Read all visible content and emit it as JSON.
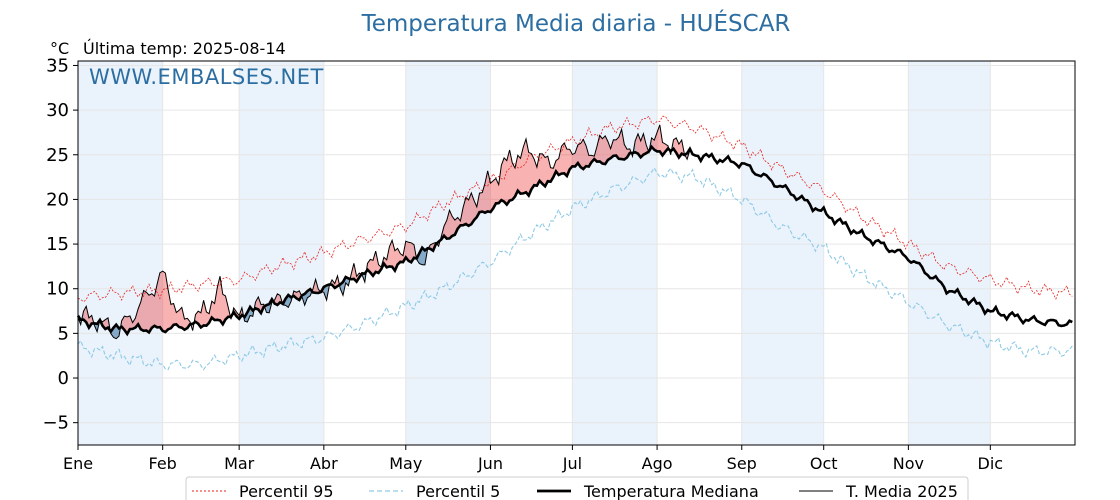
{
  "chart_data": {
    "type": "line",
    "title": "Temperatura Media diaria - HUÉSCAR",
    "unit_label": "°C",
    "last_temp_label": "Última temp: 2025-08-14",
    "watermark": "WWW.EMBALSES.NET",
    "xlabel": "",
    "ylabel": "",
    "ylim": [
      -7.5,
      35.5
    ],
    "yticks": [
      -5,
      0,
      5,
      10,
      15,
      20,
      25,
      30,
      35
    ],
    "months": [
      "Ene",
      "Feb",
      "Mar",
      "Abr",
      "May",
      "Jun",
      "Jul",
      "Ago",
      "Sep",
      "Oct",
      "Nov",
      "Dic"
    ],
    "grid": true,
    "legend_position": "bottom-center",
    "colors": {
      "p95": "#e8231f",
      "p5": "#8ecae6",
      "median": "#000000",
      "year": "#000000",
      "above": "#e8231f",
      "below": "#2f6da1",
      "shade": "#eaf2fb"
    },
    "series": [
      {
        "name": "Percentil 95",
        "key": "p95",
        "x": [
          "01-01",
          "01-15",
          "02-01",
          "02-15",
          "03-01",
          "03-15",
          "04-01",
          "04-15",
          "05-01",
          "05-15",
          "06-01",
          "06-15",
          "07-01",
          "07-15",
          "08-01",
          "08-15",
          "09-01",
          "09-15",
          "10-01",
          "10-15",
          "11-01",
          "11-15",
          "12-01",
          "12-15",
          "12-31"
        ],
        "values": [
          9.0,
          9.5,
          9.8,
          10.5,
          11.0,
          12.5,
          14.0,
          15.5,
          17.0,
          19.5,
          22.0,
          24.5,
          26.5,
          28.0,
          29.0,
          28.0,
          26.0,
          23.5,
          21.0,
          18.0,
          15.0,
          12.5,
          11.0,
          10.0,
          9.5
        ]
      },
      {
        "name": "Percentil 5",
        "key": "p5",
        "x": [
          "01-01",
          "01-15",
          "02-01",
          "02-15",
          "03-01",
          "03-15",
          "04-01",
          "04-15",
          "05-01",
          "05-15",
          "06-01",
          "06-15",
          "07-01",
          "07-15",
          "08-01",
          "08-15",
          "09-01",
          "09-15",
          "10-01",
          "10-15",
          "11-01",
          "11-15",
          "12-01",
          "12-15",
          "12-31"
        ],
        "values": [
          3.5,
          2.5,
          1.5,
          1.5,
          2.5,
          3.5,
          4.5,
          6.0,
          8.0,
          10.0,
          13.0,
          16.0,
          19.0,
          21.0,
          23.0,
          22.5,
          20.0,
          17.0,
          14.5,
          11.5,
          8.5,
          6.0,
          4.0,
          3.0,
          3.0
        ]
      },
      {
        "name": "Temperatura Mediana",
        "key": "median",
        "x": [
          "01-01",
          "01-15",
          "02-01",
          "02-15",
          "03-01",
          "03-15",
          "04-01",
          "04-15",
          "05-01",
          "05-15",
          "06-01",
          "06-15",
          "07-01",
          "07-15",
          "08-01",
          "08-15",
          "09-01",
          "09-15",
          "10-01",
          "10-15",
          "11-01",
          "11-15",
          "12-01",
          "12-15",
          "12-31"
        ],
        "values": [
          6.5,
          5.5,
          5.5,
          6.0,
          7.0,
          8.5,
          10.0,
          11.5,
          13.0,
          15.5,
          19.0,
          21.0,
          23.5,
          24.5,
          25.5,
          25.0,
          24.0,
          21.5,
          18.5,
          16.0,
          13.5,
          10.0,
          7.5,
          6.5,
          6.0
        ]
      },
      {
        "name": "T. Media 2025",
        "key": "year",
        "x": [
          "01-01",
          "01-08",
          "01-15",
          "01-22",
          "02-01",
          "02-08",
          "02-15",
          "02-22",
          "03-01",
          "03-08",
          "03-15",
          "03-22",
          "04-01",
          "04-08",
          "04-15",
          "04-22",
          "05-01",
          "05-08",
          "05-15",
          "05-22",
          "06-01",
          "06-08",
          "06-15",
          "06-22",
          "07-01",
          "07-08",
          "07-15",
          "07-22",
          "08-01",
          "08-08",
          "08-14"
        ],
        "values": [
          7.0,
          6.5,
          5.0,
          7.5,
          11.5,
          6.5,
          7.0,
          10.0,
          6.5,
          8.0,
          8.5,
          9.0,
          10.0,
          10.5,
          12.0,
          13.5,
          15.0,
          13.0,
          17.0,
          19.0,
          22.0,
          24.5,
          25.5,
          24.0,
          26.0,
          25.5,
          27.0,
          26.0,
          27.0,
          26.0,
          25.5
        ]
      }
    ]
  },
  "legend": {
    "p95": "Percentil 95",
    "p5": "Percentil 5",
    "median": "Temperatura Mediana",
    "year": "T. Media 2025"
  }
}
